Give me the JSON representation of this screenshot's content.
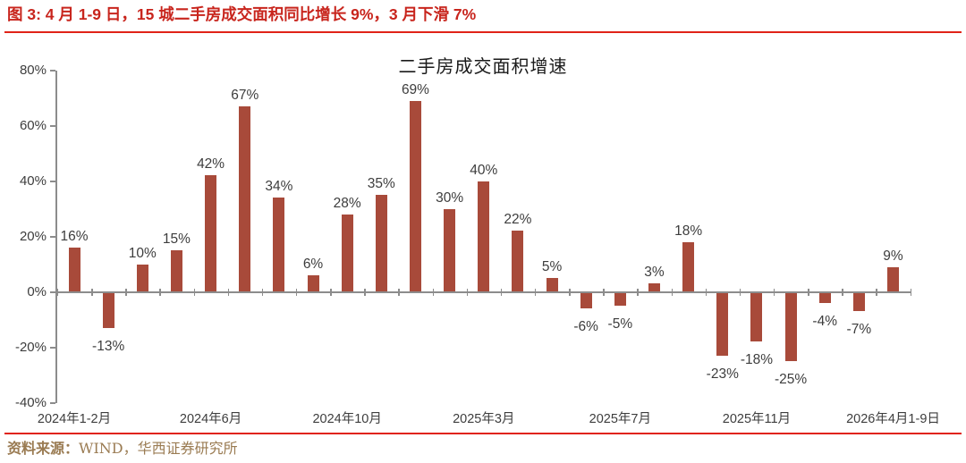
{
  "figure": {
    "title": "图 3: 4 月 1-9 日，15 城二手房成交面积同比增长 9%，3 月下滑 7%",
    "accent_color": "#c8251d",
    "rule_color": "#e02318"
  },
  "footer": {
    "source_label": "资料来源：",
    "source_text": "WIND，华西证券研究所",
    "color": "#9a7b52"
  },
  "chart_data": {
    "type": "bar",
    "title": "二手房成交面积增速",
    "values": [
      16,
      -13,
      10,
      15,
      42,
      67,
      34,
      6,
      28,
      35,
      69,
      30,
      40,
      22,
      5,
      -6,
      -5,
      3,
      18,
      -23,
      -18,
      -25,
      -4,
      -7,
      9
    ],
    "data_labels": [
      "16%",
      "-13%",
      "10%",
      "15%",
      "42%",
      "67%",
      "34%",
      "6%",
      "28%",
      "35%",
      "69%",
      "30%",
      "40%",
      "22%",
      "5%",
      "-6%",
      "-5%",
      "3%",
      "18%",
      "-23%",
      "-18%",
      "-25%",
      "-4%",
      "-7%",
      "9%"
    ],
    "x_tick_labels": [
      {
        "index": 0,
        "label": "2024年1-2月"
      },
      {
        "index": 4,
        "label": "2024年6月"
      },
      {
        "index": 8,
        "label": "2024年10月"
      },
      {
        "index": 12,
        "label": "2025年3月"
      },
      {
        "index": 16,
        "label": "2025年7月"
      },
      {
        "index": 20,
        "label": "2025年11月"
      },
      {
        "index": 24,
        "label": "2026年4月1-9日"
      }
    ],
    "y_ticks": [
      {
        "value": 80,
        "label": "80%"
      },
      {
        "value": 60,
        "label": "60%"
      },
      {
        "value": 40,
        "label": "40%"
      },
      {
        "value": 20,
        "label": "20%"
      },
      {
        "value": 0,
        "label": "0%"
      },
      {
        "value": -20,
        "label": "-20%"
      },
      {
        "value": -40,
        "label": "-40%"
      }
    ],
    "ylim": [
      -40,
      80
    ],
    "bar_color": "#a84a3a",
    "axis_color": "#8c8c8c",
    "label_color": "#3d3d3d",
    "grid": "off",
    "legend": "none"
  }
}
